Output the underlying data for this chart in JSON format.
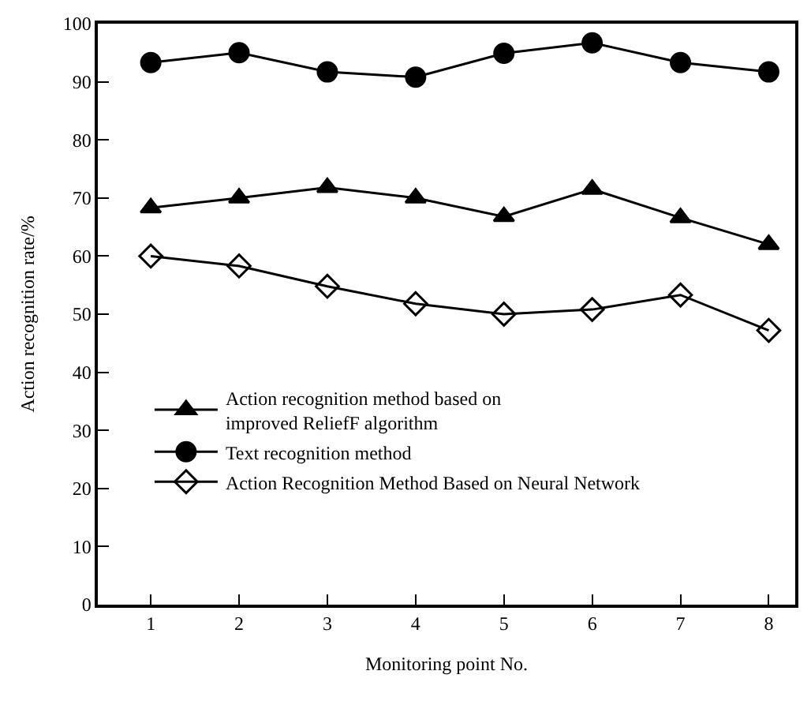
{
  "chart_data": {
    "type": "line",
    "xlabel": "Monitoring point No.",
    "ylabel": "Action recognition rate/%",
    "x": [
      1,
      2,
      3,
      4,
      5,
      6,
      7,
      8
    ],
    "xlim": [
      0.4,
      8.3
    ],
    "xticks": [
      1,
      2,
      3,
      4,
      5,
      6,
      7,
      8
    ],
    "ylim": [
      0,
      100
    ],
    "yticks": [
      0,
      10,
      20,
      30,
      40,
      50,
      60,
      70,
      80,
      90,
      100
    ],
    "legend": "bottom left",
    "line_style": "solid",
    "series": [
      {
        "name": "Action recognition method based on improved ReliefF algorithm",
        "color": "#000000",
        "marker": "triangle",
        "values": [
          68.3,
          70,
          71.8,
          70,
          66.8,
          71.5,
          66.6,
          62
        ]
      },
      {
        "name": "Text recognition method",
        "color": "#000000",
        "marker": "circle",
        "values": [
          93.3,
          95,
          91.7,
          90.8,
          94.9,
          96.7,
          93.3,
          91.7
        ]
      },
      {
        "name": "Action Recognition Method Based on Neural Network",
        "color": "#000000",
        "marker": "diamond-open",
        "values": [
          60,
          58.3,
          54.8,
          51.8,
          50,
          50.8,
          53.3,
          47.2
        ]
      }
    ]
  }
}
